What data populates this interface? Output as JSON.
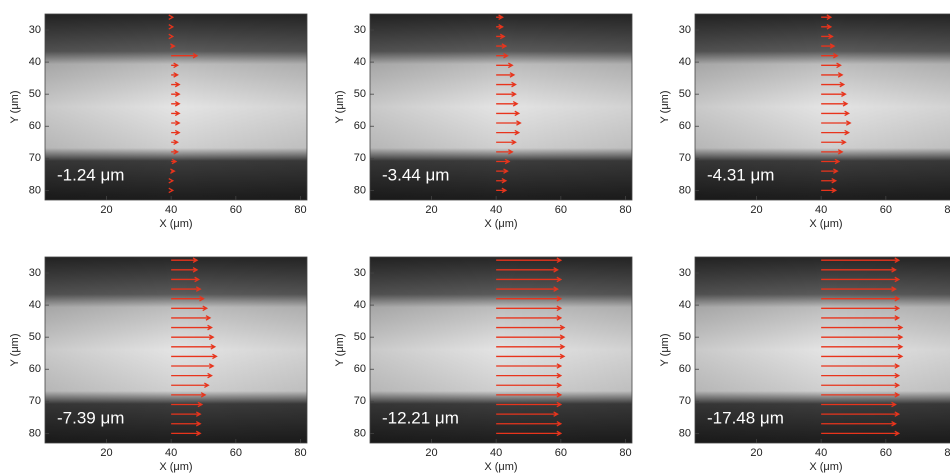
{
  "chart_data": [
    {
      "type": "quiver",
      "annotation": "-1.24 μm",
      "xlabel": "X (μm)",
      "ylabel": "Y (μm)",
      "xlim": [
        1,
        82
      ],
      "ylim": [
        83,
        25
      ],
      "xticks": [
        20,
        40,
        60,
        80
      ],
      "yticks": [
        30,
        40,
        50,
        60,
        70,
        80
      ],
      "color": "#e8341c",
      "x": [
        40,
        40,
        40,
        40,
        40,
        40,
        40,
        40,
        40,
        40,
        40,
        40,
        40,
        40,
        40,
        40,
        40,
        40,
        40
      ],
      "y": [
        26,
        29,
        32,
        35,
        38,
        41,
        44,
        47,
        50,
        53,
        56,
        59,
        62,
        65,
        68,
        71,
        74,
        77,
        80
      ],
      "u": [
        0.5,
        0.5,
        0.5,
        1,
        8,
        2,
        2,
        2.5,
        2.5,
        2.5,
        2.5,
        2.5,
        2.5,
        2,
        2,
        1.5,
        1,
        0.5,
        0.5
      ]
    },
    {
      "type": "quiver",
      "annotation": "-3.44 μm",
      "xlabel": "X (μm)",
      "ylabel": "Y (μm)",
      "xlim": [
        1,
        82
      ],
      "ylim": [
        83,
        25
      ],
      "xticks": [
        20,
        40,
        60,
        80
      ],
      "yticks": [
        30,
        40,
        50,
        60,
        70,
        80
      ],
      "color": "#e8341c",
      "x": [
        40,
        40,
        40,
        40,
        40,
        40,
        40,
        40,
        40,
        40,
        40,
        40,
        40,
        40,
        40,
        40,
        40,
        40,
        40
      ],
      "y": [
        26,
        29,
        32,
        35,
        38,
        41,
        44,
        47,
        50,
        53,
        56,
        59,
        62,
        65,
        68,
        71,
        74,
        77,
        80
      ],
      "u": [
        2,
        2,
        2.5,
        3,
        3.5,
        5,
        5.5,
        6,
        6,
        6.5,
        7,
        7.5,
        7,
        6,
        5,
        4,
        3.5,
        3,
        3
      ]
    },
    {
      "type": "quiver",
      "annotation": "-4.31 μm",
      "xlabel": "X (μm)",
      "ylabel": "Y (μm)",
      "xlim": [
        1,
        82
      ],
      "ylim": [
        83,
        25
      ],
      "xticks": [
        20,
        40,
        60,
        80
      ],
      "yticks": [
        30,
        40,
        50,
        60,
        70,
        80
      ],
      "color": "#e8341c",
      "x": [
        40,
        40,
        40,
        40,
        40,
        40,
        40,
        40,
        40,
        40,
        40,
        40,
        40,
        40,
        40,
        40,
        40,
        40,
        40
      ],
      "y": [
        26,
        29,
        32,
        35,
        38,
        41,
        44,
        47,
        50,
        53,
        56,
        59,
        62,
        65,
        68,
        71,
        74,
        77,
        80
      ],
      "u": [
        3,
        3,
        3.5,
        4,
        5,
        6,
        6.5,
        7,
        7.5,
        8,
        8.5,
        9,
        8.5,
        7.5,
        6.5,
        5.5,
        5,
        4.5,
        4.5
      ]
    },
    {
      "type": "quiver",
      "annotation": "-7.39 μm",
      "xlabel": "X (μm)",
      "ylabel": "Y (μm)",
      "xlim": [
        1,
        82
      ],
      "ylim": [
        83,
        25
      ],
      "xticks": [
        20,
        40,
        60,
        80
      ],
      "yticks": [
        30,
        40,
        50,
        60,
        70,
        80
      ],
      "color": "#e8341c",
      "x": [
        40,
        40,
        40,
        40,
        40,
        40,
        40,
        40,
        40,
        40,
        40,
        40,
        40,
        40,
        40,
        40,
        40,
        40,
        40
      ],
      "y": [
        26,
        29,
        32,
        35,
        38,
        41,
        44,
        47,
        50,
        53,
        56,
        59,
        62,
        65,
        68,
        71,
        74,
        77,
        80
      ],
      "u": [
        8,
        8,
        8.5,
        9,
        10,
        11,
        12,
        12.5,
        13,
        13.5,
        14,
        13,
        12.5,
        11.5,
        10.5,
        9.5,
        9,
        9,
        9
      ]
    },
    {
      "type": "quiver",
      "annotation": "-12.21 μm",
      "xlabel": "X (μm)",
      "ylabel": "Y (μm)",
      "xlim": [
        1,
        82
      ],
      "ylim": [
        83,
        25
      ],
      "xticks": [
        20,
        40,
        60,
        80
      ],
      "yticks": [
        30,
        40,
        50,
        60,
        70,
        80
      ],
      "color": "#e8341c",
      "x": [
        40,
        40,
        40,
        40,
        40,
        40,
        40,
        40,
        40,
        40,
        40,
        40,
        40,
        40,
        40,
        40,
        40,
        40,
        40
      ],
      "y": [
        26,
        29,
        32,
        35,
        38,
        41,
        44,
        47,
        50,
        53,
        56,
        59,
        62,
        65,
        68,
        71,
        74,
        77,
        80
      ],
      "u": [
        20,
        19,
        20,
        19,
        20,
        20,
        20,
        21,
        21,
        21,
        21,
        20,
        20,
        20,
        20,
        20,
        19,
        20,
        20
      ]
    },
    {
      "type": "quiver",
      "annotation": "-17.48 μm",
      "xlabel": "X (μm)",
      "ylabel": "Y (μm)",
      "xlim": [
        1,
        82
      ],
      "ylim": [
        83,
        25
      ],
      "xticks": [
        20,
        40,
        60,
        80
      ],
      "yticks": [
        30,
        40,
        50,
        60,
        70,
        80
      ],
      "color": "#e8341c",
      "x": [
        40,
        40,
        40,
        40,
        40,
        40,
        40,
        40,
        40,
        40,
        40,
        40,
        40,
        40,
        40,
        40,
        40,
        40,
        40
      ],
      "y": [
        26,
        29,
        32,
        35,
        38,
        41,
        44,
        47,
        50,
        53,
        56,
        59,
        62,
        65,
        68,
        71,
        74,
        77,
        80
      ],
      "u": [
        24,
        23,
        24,
        23,
        24,
        24,
        24,
        25,
        25,
        25,
        25,
        24,
        24,
        24,
        24,
        23,
        24,
        23,
        24
      ]
    }
  ]
}
